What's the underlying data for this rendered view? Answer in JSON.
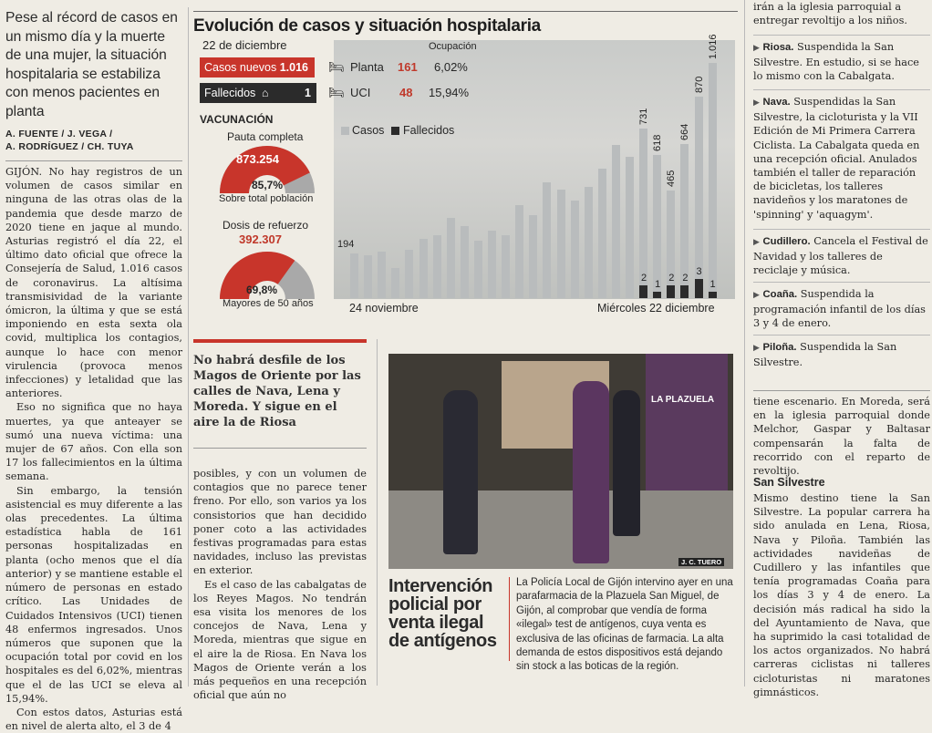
{
  "col1": {
    "headline": "Pese al récord de casos en un mismo día y la muerte de una mujer, la situación hospitalaria se estabiliza con menos pacientes en planta",
    "byline": [
      "A. FUENTE / J. VEGA /",
      "A. RODRÍGUEZ / CH. TUYA"
    ],
    "dateline": "GIJÓN.",
    "p1": "No hay registros de un volumen de casos similar en ninguna de las otras olas de la pandemia que desde marzo de 2020 tiene en jaque al mundo. Asturias registró el día 22, el último dato oficial que ofrece la Consejería de Salud, 1.016 casos de coronavirus. La altísima transmisividad de la variante ómicron, la última y que se está imponiendo en esta sexta ola covid, multiplica los contagios, aunque lo hace con menor virulencia (provoca menos infecciones) y letalidad que las anteriores.",
    "p2": "Eso no significa que no haya muertes, ya que anteayer se sumó una nueva víctima: una mujer de 67 años. Con ella son 17 los fallecimientos en la última semana.",
    "p3": "Sin embargo, la tensión asistencial es muy diferente a las olas precedentes. La última estadística habla de 161 personas hospitalizadas en planta (ocho menos que el día anterior) y se mantiene estable el número de personas en estado crítico. Las Unidades de Cuidados Intensivos (UCI) tienen 48 enfermos ingresados. Unos números que suponen que la ocupación total por covid en los hospitales es del 6,02%, mientras que el de las UCI se eleva al 15,94%.",
    "p4": "Con estos datos, Asturias está en nivel de alerta alto, el 3 de 4"
  },
  "panel": {
    "title": "Evolución de casos y situación hospitalaria",
    "date": "22 de diciembre",
    "ocupacion_label": "Ocupación",
    "casos_label": "Casos nuevos",
    "casos_value": "1.016",
    "fallecidos_label": "Fallecidos",
    "fallecidos_value": "1",
    "planta_label": "Planta",
    "planta_value": "161",
    "planta_pct": "6,02%",
    "uci_label": "UCI",
    "uci_value": "48",
    "uci_pct": "15,94%",
    "vacunacion_label": "VACUNACIÓN",
    "pauta_label": "Pauta completa",
    "pauta_value": "873.254",
    "pauta_pct": "85,7%",
    "pauta_fraction": 0.857,
    "pauta_caption": "Sobre total población",
    "refuerzo_label": "Dosis de refuerzo",
    "refuerzo_value": "392.307",
    "refuerzo_pct": "69,8%",
    "refuerzo_fraction": 0.698,
    "refuerzo_caption": "Mayores de 50 años",
    "colors": {
      "accent_red": "#c8352b",
      "dark": "#2b2b2b",
      "bar_grey": "#b9bcbd"
    }
  },
  "chart_data": {
    "type": "bar",
    "legend": [
      "Casos",
      "Fallecidos"
    ],
    "x_start_label": "24 noviembre",
    "x_end_label": "Miércoles 22 diciembre",
    "series": [
      {
        "name": "Casos",
        "values": [
          194,
          185,
          200,
          130,
          210,
          255,
          270,
          345,
          310,
          250,
          290,
          270,
          400,
          360,
          500,
          470,
          420,
          480,
          560,
          660,
          610,
          731,
          618,
          465,
          664,
          870,
          1016
        ]
      },
      {
        "name": "Fallecidos",
        "values": [
          null,
          null,
          null,
          null,
          null,
          null,
          null,
          null,
          null,
          null,
          null,
          null,
          null,
          null,
          null,
          null,
          null,
          null,
          null,
          null,
          null,
          2,
          1,
          2,
          2,
          3,
          1
        ]
      }
    ],
    "labels": {
      "first": "194",
      "c21": "731",
      "c22": "618",
      "c23": "465",
      "c24": "664",
      "c25": "870",
      "c26": "1.016"
    }
  },
  "middle": {
    "subhead": "No habrá desfile de los Magos de Oriente por las calles de Nava, Lena y Moreda. Y sigue en el aire la de Riosa",
    "body1": "posibles, y con un volumen de contagios que no parece tener freno. Por ello, son varios ya los consistorios que han decidido poner coto a las actividades festivas programadas para estas navidades, incluso las previstas en exterior.",
    "body2": "Es el caso de las cabalgatas de los Reyes Magos. No tendrán esa visita los menores de los concejos de Nava, Lena y Moreda, mientras que sigue en el aire la de Riosa. En Nava los Magos de Oriente verán a los más pequeños en una recepción oficial que aún no"
  },
  "photo": {
    "credit": "J. C. TUERO",
    "sign": "LA PLAZUELA",
    "title": "Intervención policial por venta ilegal de antígenos",
    "caption": "La Policía Local de Gijón intervino ayer en una parafarmacia de la Plazuela San Miguel, de Gijón, al comprobar que vendía de forma «ilegal» test de antígenos, cuya venta es exclusiva de las oficinas de farmacia. La alta demanda de estos dispositivos está dejando sin stock a las boticas de la región."
  },
  "right": {
    "top": "irán a la iglesia parroquial a entregar revoltijo a los niños.",
    "items": [
      {
        "place": "Riosa.",
        "text": "Suspendida la San Silvestre. En estudio, si se hace lo mismo con la Cabalgata."
      },
      {
        "place": "Nava.",
        "text": "Suspendidas la San Silvestre, la cicloturista y la VII Edición de Mi Primera Carrera Ciclista. La Cabalgata queda en una recepción oficial. Anulados también el taller de reparación de bicicletas, los talleres navideños y los maratones de 'spinning' y 'aquagym'."
      },
      {
        "place": "Cudillero.",
        "text": "Cancela el Festival de Navidad y los talleres de reciclaje y música."
      },
      {
        "place": "Coaña.",
        "text": "Suspendida la programación infantil de los días 3 y 4 de enero."
      },
      {
        "place": "Piloña.",
        "text": "Suspendida la San Silvestre."
      }
    ],
    "cont": "tiene escenario. En Moreda, será en la iglesia parroquial donde Melchor, Gaspar y Baltasar compensarán la falta de recorrido con el reparto de revoltijo.",
    "section": "San Silvestre",
    "section_body": "Mismo destino tiene la San Silvestre. La popular carrera ha sido anulada en Lena, Riosa, Nava y Piloña. También las actividades navideñas de Cudillero y las infantiles que tenía programadas Coaña para los días 3 y 4 de enero. La decisión más radical ha sido la del Ayuntamiento de Nava, que ha suprimido la casi totalidad de los actos organizados. No habrá carreras ciclistas ni talleres cicloturistas ni maratones gimnásticos."
  }
}
